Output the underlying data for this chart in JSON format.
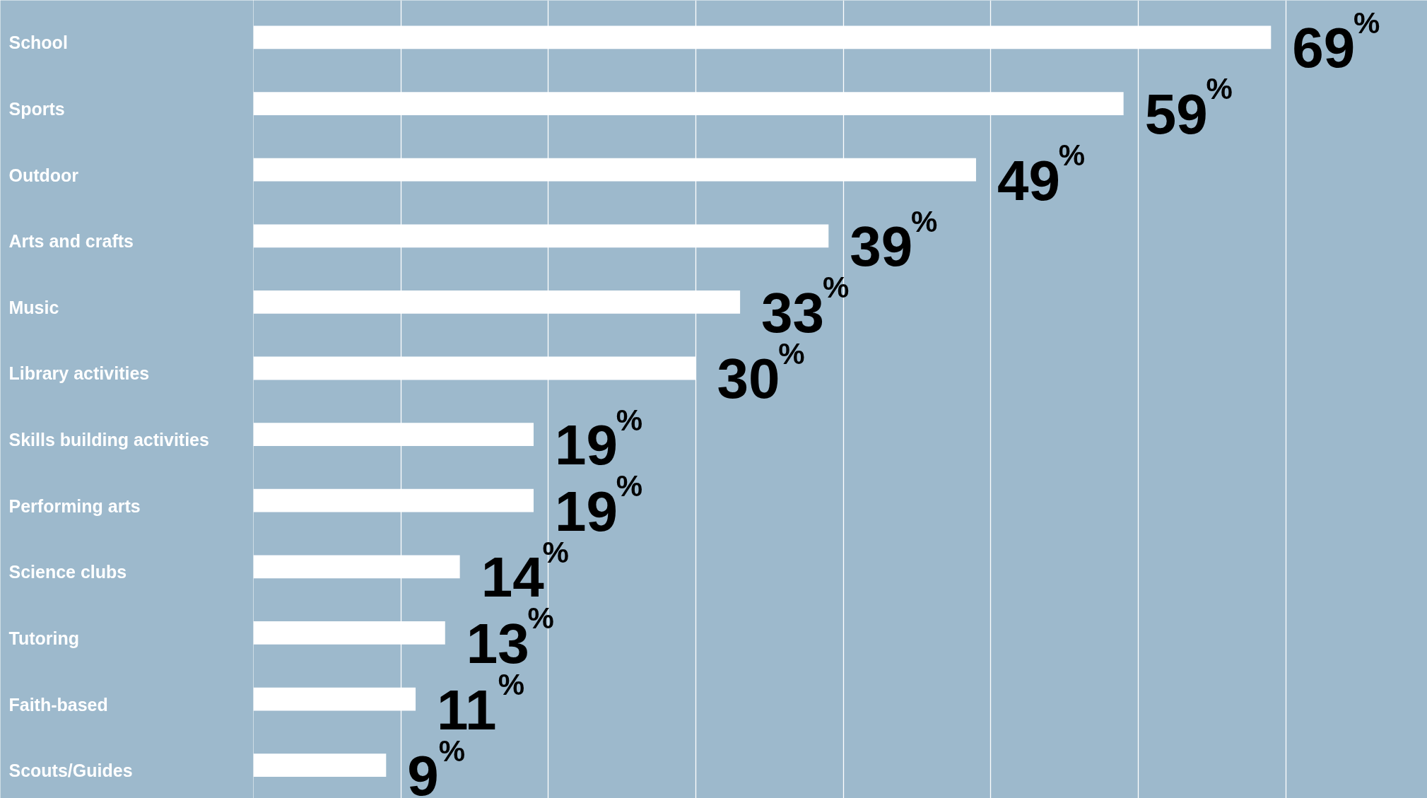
{
  "chart_data": {
    "type": "bar",
    "orientation": "horizontal",
    "categories": [
      "School",
      "Sports",
      "Outdoor",
      "Arts and crafts",
      "Music",
      "Library activities",
      "Skills building activities",
      "Performing arts",
      "Science clubs",
      "Tutoring",
      "Faith-based",
      "Scouts/Guides"
    ],
    "values": [
      69,
      59,
      49,
      39,
      33,
      30,
      19,
      19,
      14,
      13,
      11,
      9
    ],
    "value_labels": [
      "69%",
      "59%",
      "49%",
      "39%",
      "33%",
      "30%",
      "19%",
      "19%",
      "14%",
      "13%",
      "11%",
      "9%"
    ],
    "color": "#ffffff",
    "xlim": [
      0,
      79.6
    ],
    "xticks": [
      {
        "value": 10,
        "label": null
      },
      {
        "value": 20,
        "label": null
      },
      {
        "value": 30,
        "label": null
      },
      {
        "value": 40,
        "label": null
      },
      {
        "value": 50,
        "label": null
      },
      {
        "value": 60,
        "label": null
      },
      {
        "value": 70,
        "label": null
      }
    ],
    "grid": "x",
    "tick_labels": false
  }
}
